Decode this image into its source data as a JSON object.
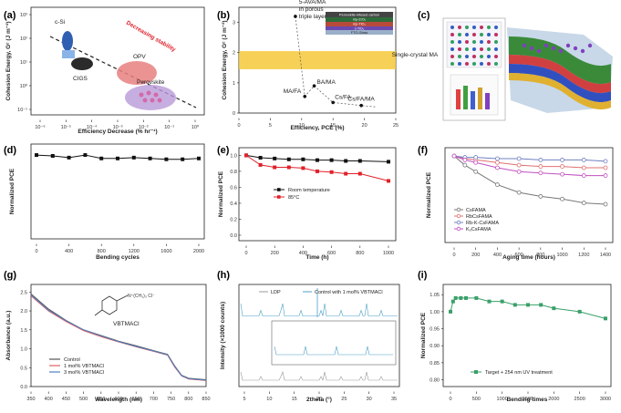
{
  "panels": {
    "a": "(a)",
    "b": "(b)",
    "c": "(c)",
    "d": "(d)",
    "e": "(e)",
    "f": "(f)",
    "g": "(g)",
    "h": "(h)",
    "i": "(i)"
  },
  "chart_data": [
    {
      "id": "a",
      "type": "scatter",
      "xlabel": "Efficiency Decrease (% hr⁻¹)",
      "ylabel": "Cohesion Energy, Gᶜ (J m⁻²)",
      "xlog": true,
      "ylog": true,
      "xticks": [
        "10⁻⁶",
        "10⁻⁵",
        "10⁻⁴",
        "10⁻³",
        "10⁻²",
        "10⁻¹",
        "10⁰"
      ],
      "yticks": [
        "10⁻¹",
        "10⁰",
        "10¹",
        "10²",
        "10³"
      ],
      "annotations": [
        "c-Si",
        "CIGS",
        "OPV",
        "Perovskite",
        "Decreasing stability"
      ]
    },
    {
      "id": "b",
      "type": "scatter",
      "xlabel": "Efficiency, PCE (%)",
      "ylabel": "Cohesion Energy, Gᶜ (J m⁻²)",
      "xlim": [
        0,
        25
      ],
      "ylim": [
        0,
        3.5
      ],
      "xticks": [
        "0",
        "5",
        "10",
        "15",
        "20",
        "25"
      ],
      "yticks": [
        "0",
        "1",
        "2",
        "3"
      ],
      "points": [
        {
          "label": "5-AVA/MA in porous triple layer",
          "x": 9,
          "y": 3.2
        },
        {
          "label": "BA/MA",
          "x": 12,
          "y": 0.9
        },
        {
          "label": "MA/FA",
          "x": 10.5,
          "y": 0.55
        },
        {
          "label": "Cs/FA",
          "x": 15,
          "y": 0.35
        },
        {
          "label": "Cs/FA/MA",
          "x": 19.5,
          "y": 0.25
        }
      ],
      "band": {
        "label": "Single-crystal MA",
        "y": [
          1.45,
          2.05
        ]
      },
      "stack_layers": [
        "Perovskite-infused carbon",
        "mp-ZrO₂",
        "mp-TiO₂",
        "c-TiO₂",
        "FTO-Glass"
      ]
    },
    {
      "id": "d",
      "type": "line",
      "xlabel": "Bending cycles",
      "ylabel": "Normalized PCE",
      "xticks": [
        "0",
        "400",
        "800",
        "1200",
        "1600",
        "2000"
      ],
      "x": [
        0,
        200,
        400,
        600,
        800,
        1000,
        1200,
        1400,
        1600,
        1800,
        2000
      ],
      "series": [
        {
          "values": [
            0.99,
            0.98,
            0.96,
            0.99,
            0.95,
            0.95,
            0.96,
            0.95,
            0.94,
            0.94,
            0.95
          ]
        }
      ]
    },
    {
      "id": "e",
      "type": "line",
      "xlabel": "Time (h)",
      "ylabel": "Normalized PCE",
      "xticks": [
        "0",
        "200",
        "400",
        "600",
        "800",
        "1000"
      ],
      "yticks": [
        "0.0",
        "0.2",
        "0.4",
        "0.6",
        "0.8",
        "1.0"
      ],
      "x": [
        0,
        100,
        200,
        300,
        400,
        500,
        600,
        700,
        800,
        1000
      ],
      "series": [
        {
          "name": "Room temperature",
          "color": "#111111",
          "values": [
            1.0,
            0.97,
            0.96,
            0.95,
            0.95,
            0.94,
            0.94,
            0.93,
            0.93,
            0.92
          ]
        },
        {
          "name": "85°C",
          "color": "#e0212a",
          "values": [
            1.0,
            0.88,
            0.85,
            0.85,
            0.84,
            0.8,
            0.79,
            0.77,
            0.77,
            0.68
          ]
        }
      ]
    },
    {
      "id": "f",
      "type": "line",
      "xlabel": "Aging time (hours)",
      "ylabel": "Normalized PCE",
      "xticks": [
        "0",
        "200",
        "400",
        "600",
        "800",
        "1000",
        "1200",
        "1400"
      ],
      "x": [
        0,
        100,
        200,
        400,
        600,
        800,
        1000,
        1200,
        1400
      ],
      "series": [
        {
          "name": "CsFAMA",
          "color": "#777777",
          "values": [
            1.0,
            0.93,
            0.88,
            0.78,
            0.72,
            0.69,
            0.67,
            0.64,
            0.63
          ]
        },
        {
          "name": "RbCsFAMA",
          "color": "#e07070",
          "values": [
            1.0,
            0.98,
            0.97,
            0.95,
            0.93,
            0.92,
            0.92,
            0.91,
            0.91
          ]
        },
        {
          "name": "Rb-K-CsFAMA",
          "color": "#7080c0",
          "values": [
            1.0,
            0.99,
            0.99,
            0.98,
            0.98,
            0.97,
            0.97,
            0.97,
            0.96
          ]
        },
        {
          "name": "K₂CsFAMA",
          "color": "#c050c0",
          "values": [
            1.0,
            0.97,
            0.95,
            0.91,
            0.88,
            0.87,
            0.86,
            0.85,
            0.85
          ]
        }
      ]
    },
    {
      "id": "g",
      "type": "line",
      "xlabel": "Wavelength (nm)",
      "ylabel": "Absorbance (a.u.)",
      "xticks": [
        "350",
        "400",
        "450",
        "500",
        "550",
        "600",
        "650",
        "700",
        "750",
        "800",
        "850"
      ],
      "yticks": [
        "0.0",
        "0.5",
        "1.0",
        "1.5",
        "2.0",
        "2.5"
      ],
      "x": [
        350,
        400,
        450,
        500,
        550,
        600,
        650,
        700,
        740,
        760,
        780,
        800,
        850
      ],
      "series": [
        {
          "name": "Control",
          "color": "#555555",
          "values": [
            2.45,
            2.05,
            1.75,
            1.5,
            1.35,
            1.2,
            1.08,
            0.95,
            0.85,
            0.55,
            0.3,
            0.22,
            0.18
          ]
        },
        {
          "name": "1 mol% VBTMACl",
          "color": "#e06060",
          "values": [
            2.4,
            2.0,
            1.72,
            1.48,
            1.32,
            1.18,
            1.05,
            0.93,
            0.83,
            0.52,
            0.28,
            0.2,
            0.16
          ]
        },
        {
          "name": "3 mol% VBTMACl",
          "color": "#5080c0",
          "values": [
            2.42,
            2.02,
            1.74,
            1.5,
            1.34,
            1.19,
            1.06,
            0.94,
            0.84,
            0.54,
            0.29,
            0.21,
            0.17
          ]
        }
      ],
      "molecule_label": "VBTMACl"
    },
    {
      "id": "h",
      "type": "line",
      "xlabel": "2theta (°)",
      "ylabel": "Intensity (×1000 counts)",
      "xticks": [
        "5",
        "10",
        "15",
        "20",
        "25",
        "30",
        "35"
      ],
      "series": [
        {
          "name": "LDP",
          "color": "#999999"
        },
        {
          "name": "Control with 1 mol% VBTMACl",
          "color": "#4aa0c8"
        }
      ]
    },
    {
      "id": "i",
      "type": "line",
      "xlabel": "Bending times",
      "ylabel": "Normalized PCE",
      "xticks": [
        "0",
        "500",
        "1000",
        "1500",
        "2000",
        "2500",
        "3000"
      ],
      "yticks": [
        "0.80",
        "0.85",
        "0.90",
        "0.95",
        "1.00",
        "1.05"
      ],
      "ylim": [
        0.78,
        1.08
      ],
      "x": [
        0,
        50,
        100,
        200,
        300,
        500,
        750,
        1000,
        1250,
        1500,
        1750,
        2000,
        2500,
        3000
      ],
      "series": [
        {
          "name": "Target + 254 nm UV treatment",
          "color": "#3aa06a",
          "values": [
            1.0,
            1.03,
            1.04,
            1.04,
            1.04,
            1.04,
            1.03,
            1.03,
            1.02,
            1.02,
            1.02,
            1.01,
            1.0,
            0.98
          ]
        }
      ]
    }
  ]
}
